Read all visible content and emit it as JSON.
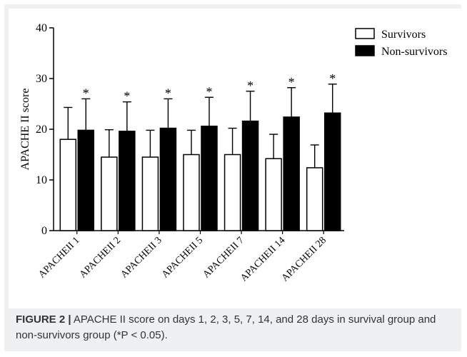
{
  "chart_data": {
    "type": "bar",
    "categories": [
      "APACHEII 1",
      "APACHEII 2",
      "APACHEII 3",
      "APACHEII 5",
      "APACHEII 7",
      "APACHEII 14",
      "APACHEII 28"
    ],
    "series": [
      {
        "name": "Survivors",
        "values": [
          18.0,
          14.5,
          14.5,
          15.0,
          15.0,
          14.2,
          12.4
        ],
        "errors": [
          6.3,
          5.4,
          5.3,
          4.8,
          5.2,
          4.8,
          4.5
        ],
        "fill": "#ffffff"
      },
      {
        "name": "Non-survivors",
        "values": [
          19.8,
          19.6,
          20.2,
          20.6,
          21.6,
          22.4,
          23.2
        ],
        "errors": [
          6.2,
          5.8,
          5.8,
          5.7,
          5.9,
          5.8,
          5.7
        ],
        "fill": "#000000"
      }
    ],
    "significance_marker": "*",
    "ylabel": "APACHE II score",
    "ylim": [
      0,
      40
    ],
    "yticks": [
      0,
      10,
      20,
      30,
      40
    ],
    "legend_position": "top-right",
    "grid": false
  },
  "caption": {
    "label": "FIGURE 2 |",
    "text": "APACHE II score on days 1, 2, 3, 5, 7, 14, and 28 days in survival group and non-survivors group (*P < 0.05)."
  }
}
